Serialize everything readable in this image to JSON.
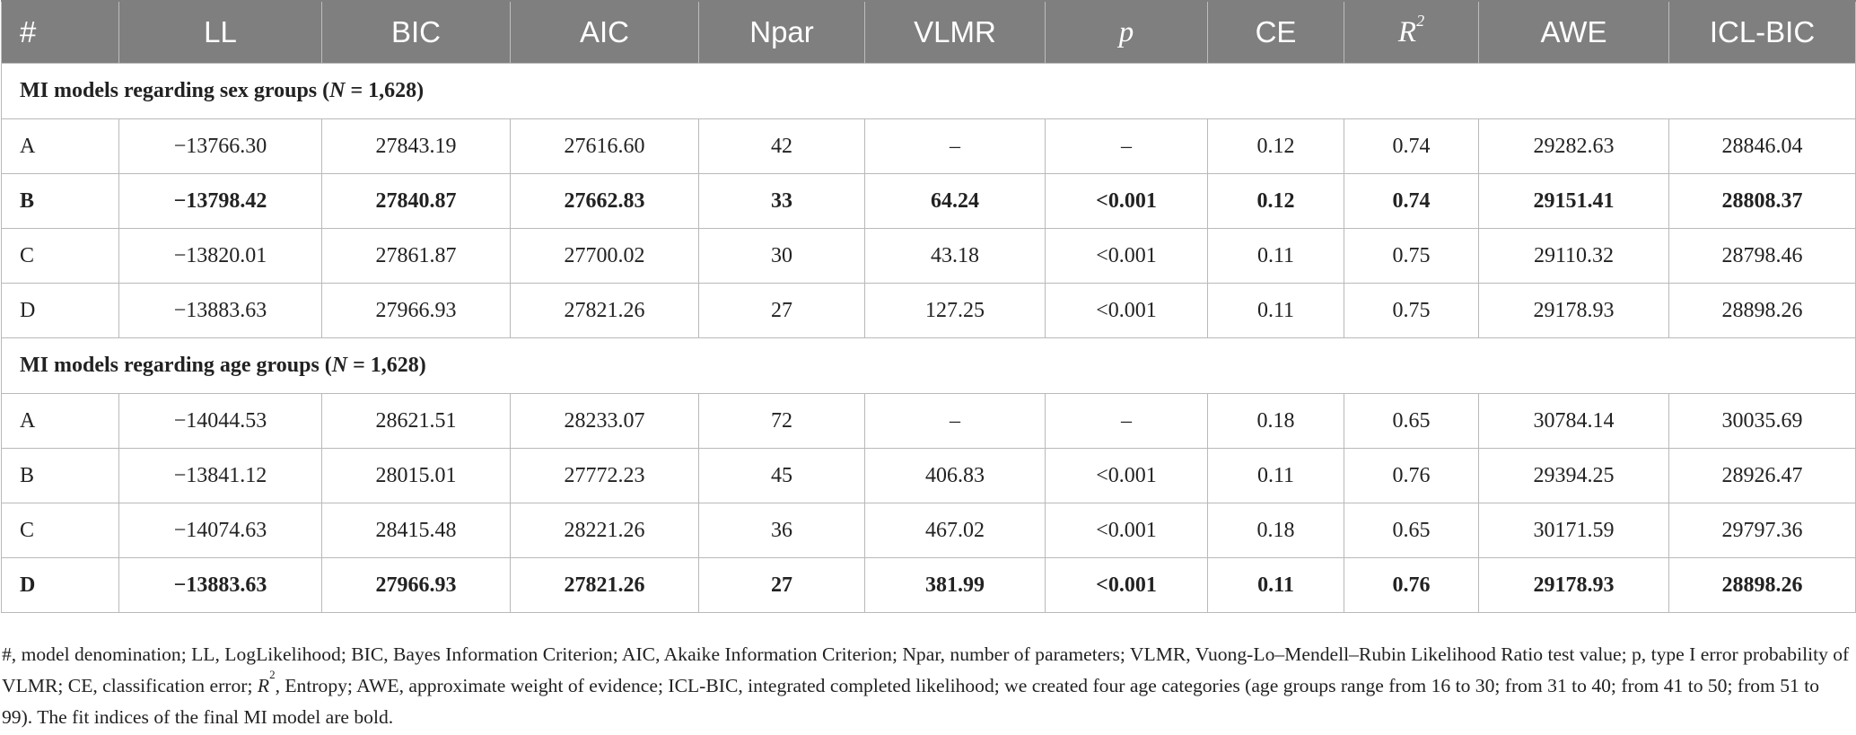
{
  "table": {
    "headers": {
      "num": "#",
      "ll": "LL",
      "bic": "BIC",
      "aic": "AIC",
      "npar": "Npar",
      "vlmr": "VLMR",
      "p": "p",
      "ce": "CE",
      "r": "R",
      "r_sup": "2",
      "awe": "AWE",
      "iclbic": "ICL-BIC"
    },
    "sections": [
      {
        "title_prefix": "MI models regarding sex groups (",
        "title_n": "N",
        "title_suffix": " = 1,628)",
        "rows": [
          [
            "A",
            "−13766.30",
            "27843.19",
            "27616.60",
            "42",
            "–",
            "–",
            "0.12",
            "0.74",
            "29282.63",
            "28846.04"
          ],
          [
            "B",
            "−13798.42",
            "27840.87",
            "27662.83",
            "33",
            "64.24",
            "<0.001",
            "0.12",
            "0.74",
            "29151.41",
            "28808.37"
          ],
          [
            "C",
            "−13820.01",
            "27861.87",
            "27700.02",
            "30",
            "43.18",
            "<0.001",
            "0.11",
            "0.75",
            "29110.32",
            "28798.46"
          ],
          [
            "D",
            "−13883.63",
            "27966.93",
            "27821.26",
            "27",
            "127.25",
            "<0.001",
            "0.11",
            "0.75",
            "29178.93",
            "28898.26"
          ]
        ]
      },
      {
        "title_prefix": "MI models regarding age groups (",
        "title_n": "N",
        "title_suffix": " = 1,628)",
        "rows": [
          [
            "A",
            "−14044.53",
            "28621.51",
            "28233.07",
            "72",
            "–",
            "–",
            "0.18",
            "0.65",
            "30784.14",
            "30035.69"
          ],
          [
            "B",
            "−13841.12",
            "28015.01",
            "27772.23",
            "45",
            "406.83",
            "<0.001",
            "0.11",
            "0.76",
            "29394.25",
            "28926.47"
          ],
          [
            "C",
            "−14074.63",
            "28415.48",
            "28221.26",
            "36",
            "467.02",
            "<0.001",
            "0.18",
            "0.65",
            "30171.59",
            "29797.36"
          ],
          [
            "D",
            "−13883.63",
            "27966.93",
            "27821.26",
            "27",
            "381.99",
            "<0.001",
            "0.11",
            "0.76",
            "29178.93",
            "28898.26"
          ]
        ]
      }
    ]
  },
  "footnote": {
    "part1": "#, model denomination; LL, LogLikelihood; BIC, Bayes Information Criterion; AIC, Akaike Information Criterion; Npar, number of parameters; VLMR, Vuong-Lo–Mendell–Rubin Likelihood Ratio test value; p, type I error probability of VLMR; CE, classification error; ",
    "r": "R",
    "r_sup": "2",
    "part2": ", Entropy; AWE, approximate weight of evidence; ICL-BIC, integrated completed likelihood; we created four age categories (age groups range from 16 to 30; from 31 to 40; from 41 to 50; from 51 to 99). The fit indices of the final MI model are bold."
  }
}
